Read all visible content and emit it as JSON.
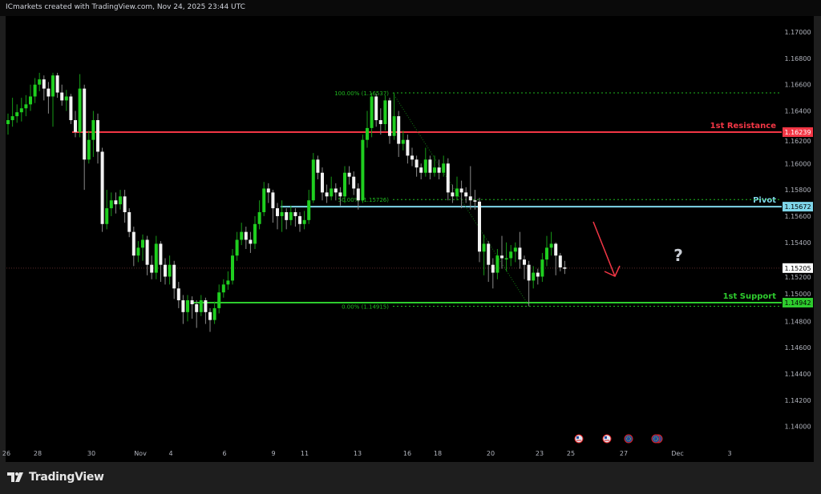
{
  "header": {
    "text": "ICmarkets created with TradingView.com, Nov 24, 2025 23:44 UTC"
  },
  "footer": {
    "logo_text": "TradingView"
  },
  "colors": {
    "background": "#000000",
    "up_candle": "#1fce1f",
    "down_candle": "#f2f2f2",
    "resistance": "#f23645",
    "pivot": "#7fd6ea",
    "support": "#2ecc2e",
    "fib": "#1fb81f",
    "arrow": "#f23645"
  },
  "chart_data": {
    "type": "candlestick",
    "ylim": [
      1.139,
      1.1725
    ],
    "y_ticks": [
      "1.14000",
      "1.14200",
      "1.14400",
      "1.14600",
      "1.14800",
      "1.15000",
      "1.15200",
      "1.15400",
      "1.15600",
      "1.15800",
      "1.16000",
      "1.16200",
      "1.16400",
      "1.16600",
      "1.16800",
      "1.17000"
    ],
    "x_ticks": [
      "26",
      "28",
      "30",
      "Nov",
      "4",
      "6",
      "9",
      "11",
      "13",
      "16",
      "18",
      "20",
      "23",
      "25",
      "27",
      "Dec",
      "3"
    ],
    "first_open": 1.163,
    "close": [
      1.1633,
      1.1636,
      1.1639,
      1.1642,
      1.1645,
      1.1651,
      1.166,
      1.1664,
      1.1657,
      1.1651,
      1.1667,
      1.1654,
      1.1648,
      1.1651,
      1.1633,
      1.1624,
      1.1657,
      1.1603,
      1.1618,
      1.1633,
      1.1609,
      1.1554,
      1.1566,
      1.1572,
      1.1569,
      1.1575,
      1.1563,
      1.1548,
      1.153,
      1.1536,
      1.1542,
      1.1523,
      1.1517,
      1.1539,
      1.1523,
      1.1514,
      1.1523,
      1.1505,
      1.1496,
      1.1487,
      1.1496,
      1.1493,
      1.1487,
      1.1496,
      1.1487,
      1.1481,
      1.149,
      1.1502,
      1.1508,
      1.1511,
      1.153,
      1.1542,
      1.1548,
      1.1542,
      1.1539,
      1.1554,
      1.1563,
      1.1581,
      1.1578,
      1.1566,
      1.156,
      1.1563,
      1.1557,
      1.1563,
      1.156,
      1.1554,
      1.1557,
      1.1572,
      1.1603,
      1.1593,
      1.1578,
      1.1575,
      1.1581,
      1.1578,
      1.1575,
      1.1593,
      1.159,
      1.1581,
      1.1572,
      1.1618,
      1.1627,
      1.1651,
      1.1633,
      1.163,
      1.1648,
      1.1621,
      1.1636,
      1.1615,
      1.1618,
      1.1606,
      1.1603,
      1.1597,
      1.1593,
      1.1603,
      1.1593,
      1.1597,
      1.1593,
      1.16,
      1.1578,
      1.1575,
      1.1581,
      1.1578,
      1.1575,
      1.1572,
      1.1571,
      1.1533,
      1.1539,
      1.1523,
      1.1517,
      1.153,
      1.1528,
      1.1528,
      1.1533,
      1.1536,
      1.1527,
      1.1523,
      1.1511,
      1.1517,
      1.1514,
      1.1527,
      1.1536,
      1.1539,
      1.153,
      1.1521,
      1.152
    ],
    "high": [
      1.1638,
      1.165,
      1.1645,
      1.165,
      1.1652,
      1.166,
      1.1665,
      1.1669,
      1.1667,
      1.1662,
      1.1669,
      1.1669,
      1.166,
      1.1656,
      1.1653,
      1.164,
      1.1668,
      1.166,
      1.1625,
      1.164,
      1.1638,
      1.1612,
      1.158,
      1.1578,
      1.1578,
      1.158,
      1.158,
      1.1566,
      1.1552,
      1.1541,
      1.1546,
      1.1545,
      1.153,
      1.1545,
      1.1541,
      1.1528,
      1.153,
      1.1526,
      1.151,
      1.15,
      1.15,
      1.1499,
      1.1496,
      1.15,
      1.1498,
      1.149,
      1.1495,
      1.1508,
      1.1512,
      1.1518,
      1.1535,
      1.1548,
      1.1555,
      1.1552,
      1.1548,
      1.156,
      1.1572,
      1.1586,
      1.1585,
      1.158,
      1.157,
      1.1572,
      1.1566,
      1.1568,
      1.1566,
      1.1563,
      1.1564,
      1.158,
      1.1608,
      1.1606,
      1.1597,
      1.1584,
      1.159,
      1.1585,
      1.1582,
      1.1598,
      1.1598,
      1.1594,
      1.1585,
      1.1622,
      1.164,
      1.16537,
      1.1653,
      1.1642,
      1.1652,
      1.165,
      1.1654,
      1.164,
      1.1625,
      1.1622,
      1.1612,
      1.1606,
      1.16,
      1.1612,
      1.1606,
      1.1606,
      1.1603,
      1.1606,
      1.1604,
      1.1584,
      1.159,
      1.1587,
      1.1582,
      1.1598,
      1.158,
      1.1574,
      1.1546,
      1.1541,
      1.1528,
      1.1535,
      1.1545,
      1.154,
      1.1538,
      1.154,
      1.1548,
      1.153,
      1.1526,
      1.1522,
      1.152,
      1.1532,
      1.1545,
      1.1548,
      1.154,
      1.1532,
      1.1526
    ],
    "low": [
      1.1622,
      1.1628,
      1.1631,
      1.1632,
      1.1636,
      1.164,
      1.1646,
      1.1655,
      1.1648,
      1.1638,
      1.1628,
      1.165,
      1.1644,
      1.164,
      1.163,
      1.162,
      1.162,
      1.158,
      1.16,
      1.1605,
      1.16,
      1.1548,
      1.155,
      1.156,
      1.1562,
      1.1565,
      1.1555,
      1.1544,
      1.1522,
      1.1525,
      1.1526,
      1.1515,
      1.1512,
      1.1512,
      1.151,
      1.1508,
      1.1508,
      1.1497,
      1.149,
      1.1478,
      1.148,
      1.1482,
      1.1475,
      1.1484,
      1.1478,
      1.1472,
      1.1478,
      1.1486,
      1.1498,
      1.1504,
      1.1508,
      1.1526,
      1.1538,
      1.1535,
      1.1532,
      1.1535,
      1.155,
      1.156,
      1.157,
      1.1555,
      1.155,
      1.1548,
      1.155,
      1.1553,
      1.1552,
      1.1548,
      1.155,
      1.1554,
      1.157,
      1.1588,
      1.1572,
      1.157,
      1.1572,
      1.1572,
      1.1568,
      1.157,
      1.1584,
      1.1576,
      1.1565,
      1.157,
      1.1612,
      1.162,
      1.1628,
      1.1622,
      1.1625,
      1.1615,
      1.1618,
      1.1605,
      1.161,
      1.16,
      1.1598,
      1.159,
      1.1588,
      1.159,
      1.1588,
      1.159,
      1.1588,
      1.159,
      1.1572,
      1.157,
      1.1572,
      1.1566,
      1.157,
      1.1565,
      1.1565,
      1.1525,
      1.1515,
      1.151,
      1.1505,
      1.1512,
      1.152,
      1.1518,
      1.1522,
      1.1525,
      1.152,
      1.1512,
      1.14915,
      1.1505,
      1.1508,
      1.151,
      1.1522,
      1.153,
      1.1515,
      1.1518,
      1.1516
    ],
    "current_price": {
      "label": "1.15205",
      "value": 1.15205
    },
    "levels": [
      {
        "name": "1st Resistance",
        "value": 1.16239,
        "label": "1.16239",
        "color": "#f23645"
      },
      {
        "name": "Pivot",
        "value": 1.15672,
        "label": "1.15672",
        "color": "#7fd6ea"
      },
      {
        "name": "1st Support",
        "value": 1.14942,
        "label": "1.14942",
        "color": "#2ecc2e"
      }
    ],
    "fibonacci": [
      {
        "label": "100.00% (1.16537)",
        "value": 1.16537
      },
      {
        "label": "50.00% (1.15726)",
        "value": 1.15726
      },
      {
        "label": "0.00% (1.14915)",
        "value": 1.14915
      }
    ],
    "annotations": {
      "question_mark": "?",
      "arrow": "down"
    },
    "events": [
      "us-flag-icon",
      "us-flag-icon",
      "eu-flag-icon",
      "eu-flag-icon"
    ]
  }
}
